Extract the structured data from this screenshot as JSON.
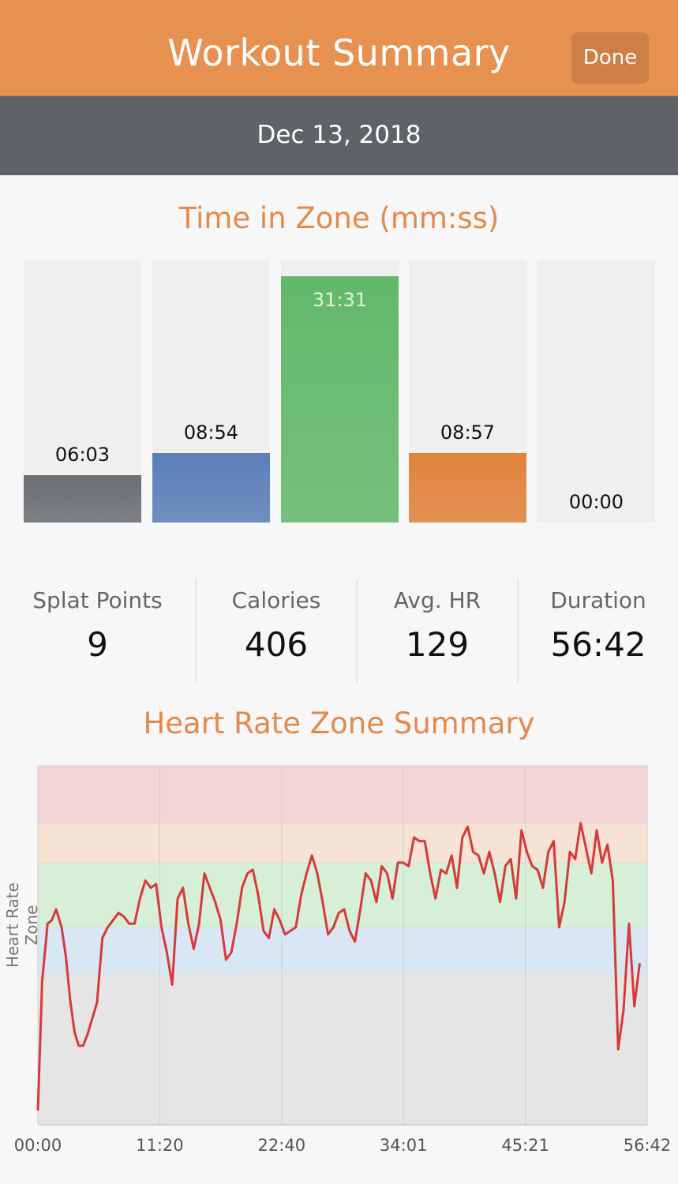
{
  "header": {
    "title": "Workout Summary",
    "done_label": "Done"
  },
  "date": "Dec 13, 2018",
  "time_in_zone": {
    "title": "Time in Zone (mm:ss)",
    "zones": [
      {
        "label": "06:03",
        "value": 0.18,
        "color": "#6b6f73"
      },
      {
        "label": "08:54",
        "value": 0.265,
        "color": "#5b7fb8"
      },
      {
        "label": "31:31",
        "value": 0.94,
        "color": "#63b86a"
      },
      {
        "label": "08:57",
        "value": 0.266,
        "color": "#e0823c"
      },
      {
        "label": "00:00",
        "value": 0,
        "color": "#d9534f"
      }
    ]
  },
  "stats": [
    {
      "label": "Splat Points",
      "value": "9"
    },
    {
      "label": "Calories",
      "value": "406"
    },
    {
      "label": "Avg. HR",
      "value": "129"
    },
    {
      "label": "Duration",
      "value": "56:42"
    }
  ],
  "hr_chart": {
    "title": "Heart Rate Zone Summary",
    "y_label": "Heart Rate Zone",
    "x_ticks": [
      "00:00",
      "11:20",
      "22:40",
      "34:01",
      "45:21",
      "56:42"
    ]
  },
  "chart_data": {
    "type": "line",
    "xlabel": "",
    "ylabel": "Heart Rate Zone",
    "xlim": [
      0,
      56.7
    ],
    "x_ticks": [
      "00:00",
      "11:20",
      "22:40",
      "34:01",
      "45:21",
      "56:42"
    ],
    "zones": [
      {
        "from": 0,
        "to": 0.42,
        "color": "#e5e5e5"
      },
      {
        "from": 0.42,
        "to": 0.55,
        "color": "#d9e6f3"
      },
      {
        "from": 0.55,
        "to": 0.73,
        "color": "#d6efd6"
      },
      {
        "from": 0.73,
        "to": 0.84,
        "color": "#f6e3d3"
      },
      {
        "from": 0.84,
        "to": 1.0,
        "color": "#f3d4d7"
      }
    ],
    "series": [
      {
        "color": "#d63a3a",
        "x": [
          0,
          0.4,
          0.9,
          1.3,
          1.7,
          2.2,
          2.6,
          3.0,
          3.4,
          3.8,
          4.2,
          4.6,
          5.0,
          5.5,
          6.0,
          6.5,
          7.0,
          7.5,
          8.0,
          8.5,
          9.0,
          9.5,
          10.0,
          10.5,
          11.0,
          11.5,
          12.0,
          12.5,
          13.0,
          13.5,
          14.0,
          14.5,
          15.0,
          15.5,
          16.0,
          16.5,
          17.0,
          17.5,
          18.0,
          18.5,
          19.0,
          19.5,
          20.0,
          20.5,
          21.0,
          21.5,
          22.0,
          22.5,
          23.0,
          23.5,
          24.0,
          24.5,
          25.0,
          25.5,
          26.0,
          26.5,
          27.0,
          27.5,
          28.0,
          28.5,
          29.0,
          29.5,
          30.0,
          30.5,
          31.0,
          31.5,
          32.0,
          32.5,
          33.0,
          33.5,
          34.0,
          34.5,
          35.0,
          35.5,
          36.0,
          36.5,
          37.0,
          37.5,
          38.0,
          38.5,
          39.0,
          39.5,
          40.0,
          40.5,
          41.0,
          41.5,
          42.0,
          42.5,
          43.0,
          43.5,
          44.0,
          44.5,
          45.0,
          45.5,
          46.0,
          46.5,
          47.0,
          47.5,
          48.0,
          48.5,
          49.0,
          49.5,
          50.0,
          50.5,
          51.0,
          51.5,
          52.0,
          52.5,
          53.0,
          53.5,
          54.0,
          54.5,
          55.0,
          55.5,
          56.0
        ],
        "y": [
          0.04,
          0.4,
          0.56,
          0.57,
          0.6,
          0.55,
          0.47,
          0.35,
          0.26,
          0.22,
          0.22,
          0.25,
          0.29,
          0.34,
          0.52,
          0.55,
          0.57,
          0.59,
          0.58,
          0.56,
          0.56,
          0.63,
          0.68,
          0.66,
          0.67,
          0.55,
          0.48,
          0.39,
          0.63,
          0.66,
          0.56,
          0.49,
          0.56,
          0.7,
          0.66,
          0.62,
          0.57,
          0.46,
          0.48,
          0.56,
          0.66,
          0.7,
          0.71,
          0.64,
          0.54,
          0.52,
          0.6,
          0.57,
          0.53,
          0.54,
          0.55,
          0.64,
          0.7,
          0.75,
          0.7,
          0.62,
          0.53,
          0.55,
          0.59,
          0.6,
          0.54,
          0.51,
          0.6,
          0.7,
          0.68,
          0.62,
          0.72,
          0.7,
          0.63,
          0.73,
          0.73,
          0.72,
          0.8,
          0.79,
          0.79,
          0.7,
          0.63,
          0.71,
          0.7,
          0.75,
          0.66,
          0.8,
          0.83,
          0.76,
          0.75,
          0.7,
          0.76,
          0.7,
          0.62,
          0.72,
          0.74,
          0.63,
          0.82,
          0.76,
          0.72,
          0.71,
          0.66,
          0.76,
          0.79,
          0.55,
          0.62,
          0.76,
          0.74,
          0.84,
          0.77,
          0.7,
          0.82,
          0.73,
          0.78,
          0.68,
          0.21,
          0.32,
          0.56,
          0.33,
          0.45
        ]
      }
    ]
  }
}
